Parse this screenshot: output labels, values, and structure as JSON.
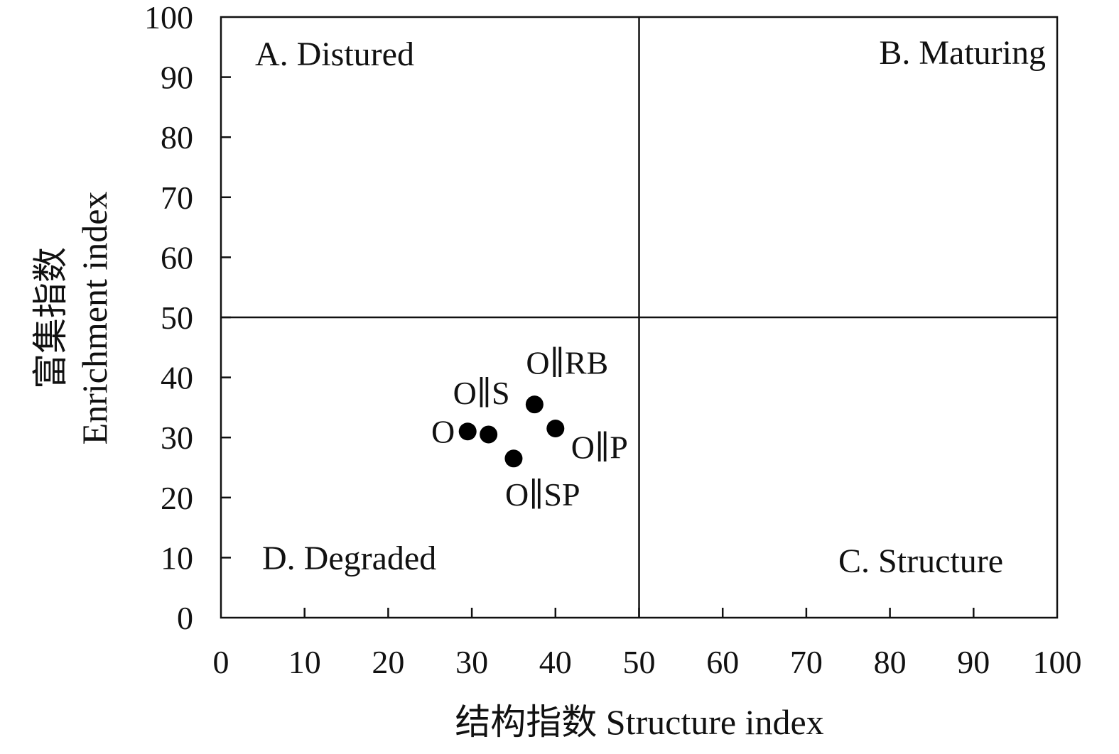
{
  "chart_data": {
    "type": "scatter",
    "title": "",
    "xlabel": "结构指数 Structure index",
    "ylabel_cn": "富集指数",
    "ylabel_en": "Enrichment index",
    "xlim": [
      0,
      100
    ],
    "ylim": [
      0,
      100
    ],
    "x_ticks": [
      0,
      10,
      20,
      30,
      40,
      50,
      60,
      70,
      80,
      90,
      100
    ],
    "y_ticks": [
      0,
      10,
      20,
      30,
      40,
      50,
      60,
      70,
      80,
      90,
      100
    ],
    "grid": false,
    "reference_lines": {
      "x": 50,
      "y": 50
    },
    "quadrants": [
      {
        "id": "A",
        "label": "A. Distured",
        "position": "top-left"
      },
      {
        "id": "B",
        "label": "B. Maturing",
        "position": "top-right"
      },
      {
        "id": "C",
        "label": "C. Structure",
        "position": "bottom-right"
      },
      {
        "id": "D",
        "label": "D. Degraded",
        "position": "bottom-left"
      }
    ],
    "points": [
      {
        "label": "O",
        "x": 29.5,
        "y": 31.0,
        "label_side": "left"
      },
      {
        "label": "O∥S",
        "x": 32.0,
        "y": 30.5,
        "label_side": "upper-left"
      },
      {
        "label": "O∥SP",
        "x": 35.0,
        "y": 26.5,
        "label_side": "below"
      },
      {
        "label": "O∥RB",
        "x": 37.5,
        "y": 35.5,
        "label_side": "upper-right"
      },
      {
        "label": "O∥P",
        "x": 40.0,
        "y": 31.5,
        "label_side": "lower-right"
      }
    ],
    "marker_color": "#000000",
    "line_color": "#111111"
  }
}
